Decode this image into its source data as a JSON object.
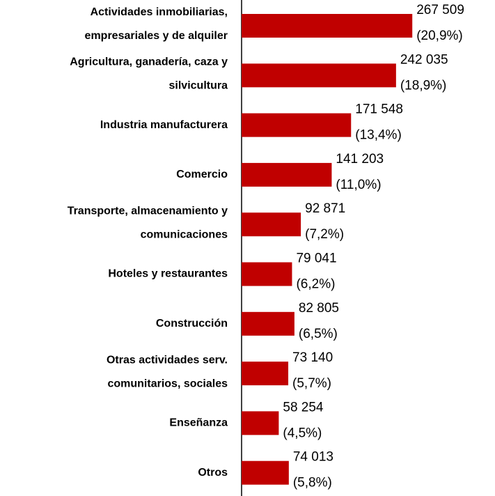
{
  "chart_data": {
    "type": "bar",
    "orientation": "horizontal",
    "color": "#c00000",
    "categories": [
      [
        "Actividades inmobiliarias,",
        "empresariales y de alquiler"
      ],
      [
        "Agricultura, ganadería, caza y",
        "silvicultura"
      ],
      [
        "Industria manufacturera"
      ],
      [
        "Comercio"
      ],
      [
        "Transporte, almacenamiento y",
        "comunicaciones"
      ],
      [
        "Hoteles y restaurantes"
      ],
      [
        "Construcción"
      ],
      [
        "Otras actividades serv.",
        "comunitarios, sociales"
      ],
      [
        "Enseñanza"
      ],
      [
        "Otros"
      ]
    ],
    "values": [
      267509,
      242035,
      171548,
      141203,
      92871,
      79041,
      82805,
      73140,
      58254,
      74013
    ],
    "value_labels": [
      "267 509",
      "242 035",
      "171 548",
      "141 203",
      "92 871",
      "79 041",
      "82 805",
      "73 140",
      "58 254",
      "74 013"
    ],
    "shares": [
      20.9,
      18.9,
      13.4,
      11.0,
      7.2,
      6.2,
      6.5,
      5.7,
      4.5,
      5.8
    ],
    "share_labels": [
      "(20,9%)",
      "(18,9%)",
      "(13,4%)",
      "(11,0%)",
      "(7,2%)",
      "(6,2%)",
      "(6,5%)",
      "(5,7%)",
      "(4,5%)",
      "(5,8%)"
    ],
    "xlim": [
      0,
      300000
    ]
  }
}
